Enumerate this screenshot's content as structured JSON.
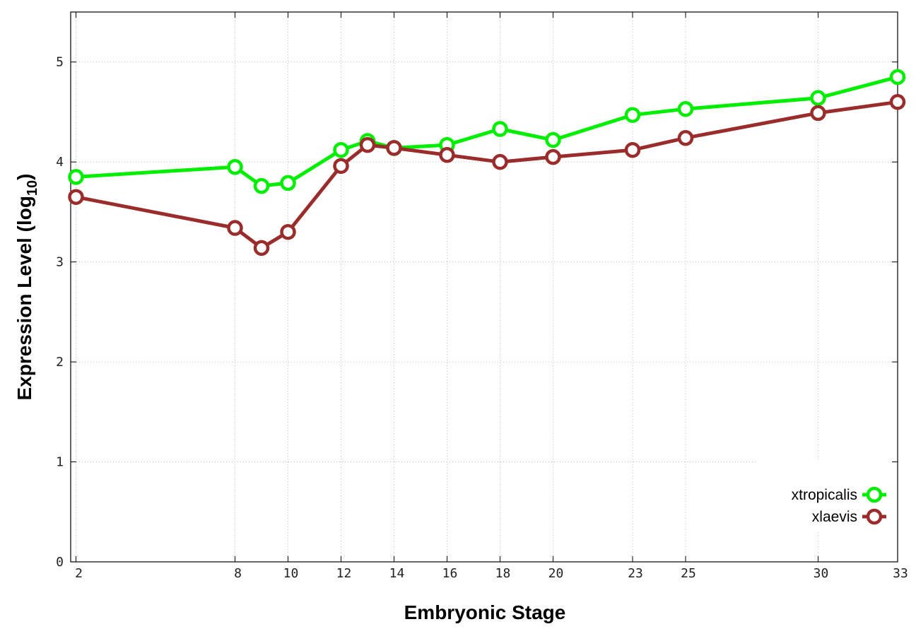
{
  "chart_data": {
    "type": "line",
    "title": "",
    "xlabel": "Embryonic Stage",
    "ylabel": {
      "main": "Expression Level (log",
      "sub": "10",
      "close": ")"
    },
    "x_ticks": [
      2,
      8,
      10,
      12,
      14,
      16,
      18,
      20,
      23,
      25,
      30,
      33
    ],
    "y_ticks": [
      0,
      1,
      2,
      3,
      4,
      5
    ],
    "xlim": [
      1.8,
      33
    ],
    "ylim": [
      0,
      5.5
    ],
    "grid": true,
    "legend_position": "bottom-right",
    "x": [
      2,
      8,
      9,
      10,
      12,
      13,
      14,
      16,
      18,
      20,
      23,
      25,
      30,
      33
    ],
    "series": [
      {
        "name": "xtropicalis",
        "color": "#00ee00",
        "values": [
          3.85,
          3.95,
          3.76,
          3.79,
          4.12,
          4.21,
          4.14,
          4.17,
          4.33,
          4.22,
          4.47,
          4.53,
          4.64,
          4.85
        ]
      },
      {
        "name": "xlaevis",
        "color": "#9b2c2c",
        "values": [
          3.65,
          3.34,
          3.14,
          3.3,
          3.96,
          4.17,
          4.14,
          4.07,
          4.0,
          4.05,
          4.12,
          4.24,
          4.49,
          4.6
        ]
      }
    ]
  }
}
